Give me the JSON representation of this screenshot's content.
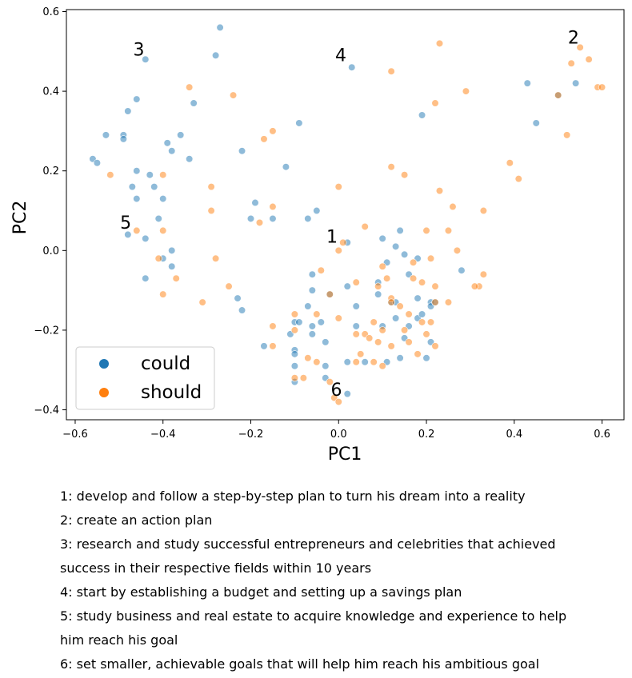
{
  "chart_data": {
    "type": "scatter",
    "xlabel": "PC1",
    "ylabel": "PC2",
    "xlim": [
      -0.62,
      0.65
    ],
    "ylim": [
      -0.425,
      0.605
    ],
    "xticks": [
      -0.6,
      -0.4,
      -0.2,
      0.0,
      0.2,
      0.4,
      0.6
    ],
    "yticks": [
      -0.4,
      -0.2,
      0.0,
      0.2,
      0.4,
      0.6
    ],
    "xtick_labels": [
      "−0.6",
      "−0.4",
      "−0.2",
      "0.0",
      "0.2",
      "0.4",
      "0.6"
    ],
    "ytick_labels": [
      "−0.4",
      "−0.2",
      "0.0",
      "0.2",
      "0.4",
      "0.6"
    ],
    "grid": false,
    "legend_position": "bottom-left",
    "series": [
      {
        "name": "could",
        "color": "#1f77b4",
        "points": [
          [
            -0.27,
            0.56
          ],
          [
            -0.44,
            0.48
          ],
          [
            -0.28,
            0.49
          ],
          [
            -0.46,
            0.38
          ],
          [
            -0.33,
            0.37
          ],
          [
            -0.48,
            0.35
          ],
          [
            -0.53,
            0.29
          ],
          [
            -0.49,
            0.29
          ],
          [
            -0.49,
            0.28
          ],
          [
            -0.36,
            0.29
          ],
          [
            -0.39,
            0.27
          ],
          [
            -0.38,
            0.25
          ],
          [
            -0.22,
            0.25
          ],
          [
            -0.56,
            0.23
          ],
          [
            -0.55,
            0.22
          ],
          [
            -0.34,
            0.23
          ],
          [
            -0.46,
            0.2
          ],
          [
            -0.43,
            0.19
          ],
          [
            -0.12,
            0.21
          ],
          [
            -0.09,
            0.32
          ],
          [
            -0.47,
            0.16
          ],
          [
            -0.42,
            0.16
          ],
          [
            -0.46,
            0.13
          ],
          [
            -0.4,
            0.13
          ],
          [
            -0.19,
            0.12
          ],
          [
            -0.2,
            0.08
          ],
          [
            -0.15,
            0.08
          ],
          [
            -0.07,
            0.08
          ],
          [
            -0.05,
            0.1
          ],
          [
            -0.41,
            0.08
          ],
          [
            -0.48,
            0.04
          ],
          [
            -0.44,
            0.03
          ],
          [
            -0.38,
            0.0
          ],
          [
            -0.4,
            -0.02
          ],
          [
            -0.38,
            -0.04
          ],
          [
            -0.44,
            -0.07
          ],
          [
            -0.23,
            -0.12
          ],
          [
            -0.22,
            -0.15
          ],
          [
            0.03,
            0.46
          ],
          [
            0.02,
            0.02
          ],
          [
            0.1,
            0.03
          ],
          [
            0.14,
            0.05
          ],
          [
            0.13,
            0.01
          ],
          [
            0.15,
            -0.01
          ],
          [
            0.11,
            -0.03
          ],
          [
            0.18,
            -0.02
          ],
          [
            0.16,
            -0.06
          ],
          [
            0.28,
            -0.05
          ],
          [
            0.02,
            -0.09
          ],
          [
            0.04,
            -0.14
          ],
          [
            0.09,
            -0.08
          ],
          [
            0.09,
            -0.11
          ],
          [
            0.12,
            -0.13
          ],
          [
            0.13,
            -0.13
          ],
          [
            0.18,
            -0.12
          ],
          [
            0.21,
            -0.13
          ],
          [
            0.21,
            -0.14
          ],
          [
            0.22,
            -0.13
          ],
          [
            0.13,
            -0.17
          ],
          [
            0.18,
            -0.17
          ],
          [
            0.19,
            -0.16
          ],
          [
            0.16,
            -0.19
          ],
          [
            0.1,
            -0.19
          ],
          [
            0.04,
            -0.19
          ],
          [
            0.15,
            -0.22
          ],
          [
            0.21,
            -0.23
          ],
          [
            0.2,
            -0.27
          ],
          [
            0.14,
            -0.27
          ],
          [
            0.11,
            -0.28
          ],
          [
            0.06,
            -0.28
          ],
          [
            0.02,
            -0.28
          ],
          [
            -0.06,
            -0.06
          ],
          [
            -0.07,
            -0.14
          ],
          [
            -0.06,
            -0.19
          ],
          [
            -0.04,
            -0.18
          ],
          [
            -0.06,
            -0.21
          ],
          [
            -0.03,
            -0.23
          ],
          [
            -0.02,
            -0.11
          ],
          [
            -0.06,
            -0.1
          ],
          [
            -0.1,
            -0.18
          ],
          [
            -0.09,
            -0.18
          ],
          [
            -0.11,
            -0.21
          ],
          [
            -0.1,
            -0.25
          ],
          [
            -0.1,
            -0.26
          ],
          [
            -0.1,
            -0.29
          ],
          [
            -0.1,
            -0.33
          ],
          [
            -0.03,
            -0.29
          ],
          [
            -0.03,
            -0.32
          ],
          [
            -0.17,
            -0.24
          ],
          [
            0.02,
            -0.36
          ],
          [
            0.19,
            0.34
          ],
          [
            0.43,
            0.42
          ],
          [
            0.45,
            0.32
          ],
          [
            0.54,
            0.42
          ],
          [
            0.5,
            0.39
          ]
        ]
      },
      {
        "name": "should",
        "color": "#ff7f0e",
        "points": [
          [
            0.23,
            0.52
          ],
          [
            0.12,
            0.45
          ],
          [
            0.29,
            0.4
          ],
          [
            0.22,
            0.37
          ],
          [
            -0.34,
            0.41
          ],
          [
            -0.24,
            0.39
          ],
          [
            -0.15,
            0.3
          ],
          [
            -0.17,
            0.28
          ],
          [
            0.52,
            0.29
          ],
          [
            0.39,
            0.22
          ],
          [
            0.41,
            0.18
          ],
          [
            0.12,
            0.21
          ],
          [
            0.15,
            0.19
          ],
          [
            0.23,
            0.15
          ],
          [
            -0.52,
            0.19
          ],
          [
            -0.4,
            0.19
          ],
          [
            -0.29,
            0.16
          ],
          [
            0.0,
            0.16
          ],
          [
            -0.29,
            0.1
          ],
          [
            -0.15,
            0.11
          ],
          [
            -0.18,
            0.07
          ],
          [
            0.26,
            0.11
          ],
          [
            0.33,
            0.1
          ],
          [
            0.06,
            0.06
          ],
          [
            0.2,
            0.05
          ],
          [
            0.25,
            0.05
          ],
          [
            0.27,
            0.0
          ],
          [
            -0.46,
            0.05
          ],
          [
            -0.4,
            0.05
          ],
          [
            -0.41,
            -0.02
          ],
          [
            -0.37,
            -0.07
          ],
          [
            -0.4,
            -0.11
          ],
          [
            -0.28,
            -0.02
          ],
          [
            -0.25,
            -0.09
          ],
          [
            -0.31,
            -0.13
          ],
          [
            0.01,
            0.02
          ],
          [
            0.0,
            0.0
          ],
          [
            -0.04,
            -0.05
          ],
          [
            0.1,
            -0.04
          ],
          [
            0.11,
            -0.07
          ],
          [
            0.17,
            -0.07
          ],
          [
            0.21,
            -0.02
          ],
          [
            0.17,
            -0.03
          ],
          [
            0.19,
            -0.08
          ],
          [
            0.22,
            -0.09
          ],
          [
            0.33,
            -0.06
          ],
          [
            0.32,
            -0.09
          ],
          [
            0.31,
            -0.09
          ],
          [
            0.25,
            -0.13
          ],
          [
            0.04,
            -0.08
          ],
          [
            0.09,
            -0.09
          ],
          [
            0.12,
            -0.12
          ],
          [
            0.12,
            -0.13
          ],
          [
            0.14,
            -0.14
          ],
          [
            0.16,
            -0.16
          ],
          [
            0.15,
            -0.2
          ],
          [
            0.19,
            -0.18
          ],
          [
            0.21,
            -0.18
          ],
          [
            0.22,
            -0.13
          ],
          [
            0.2,
            -0.21
          ],
          [
            0.1,
            -0.2
          ],
          [
            0.08,
            -0.18
          ],
          [
            0.06,
            -0.21
          ],
          [
            0.04,
            -0.21
          ],
          [
            0.07,
            -0.22
          ],
          [
            0.09,
            -0.23
          ],
          [
            0.12,
            -0.24
          ],
          [
            0.16,
            -0.23
          ],
          [
            0.22,
            -0.24
          ],
          [
            0.18,
            -0.26
          ],
          [
            0.1,
            -0.29
          ],
          [
            0.08,
            -0.28
          ],
          [
            0.05,
            -0.26
          ],
          [
            0.04,
            -0.28
          ],
          [
            -0.02,
            -0.11
          ],
          [
            0.0,
            -0.17
          ],
          [
            -0.05,
            -0.16
          ],
          [
            -0.15,
            -0.19
          ],
          [
            -0.15,
            -0.24
          ],
          [
            -0.1,
            -0.16
          ],
          [
            -0.1,
            -0.2
          ],
          [
            -0.07,
            -0.27
          ],
          [
            -0.05,
            -0.28
          ],
          [
            -0.08,
            -0.32
          ],
          [
            -0.1,
            -0.32
          ],
          [
            -0.02,
            -0.33
          ],
          [
            -0.01,
            -0.37
          ],
          [
            0.0,
            -0.38
          ],
          [
            0.55,
            0.51
          ],
          [
            0.53,
            0.47
          ],
          [
            0.57,
            0.48
          ],
          [
            0.5,
            0.39
          ],
          [
            0.59,
            0.41
          ],
          [
            0.6,
            0.41
          ]
        ]
      }
    ],
    "annotations": [
      {
        "text": "1",
        "x": -0.015,
        "y": 0.02
      },
      {
        "text": "2",
        "x": 0.535,
        "y": 0.52
      },
      {
        "text": "3",
        "x": -0.455,
        "y": 0.49
      },
      {
        "text": "4",
        "x": 0.005,
        "y": 0.475
      },
      {
        "text": "5",
        "x": -0.485,
        "y": 0.055
      },
      {
        "text": "6",
        "x": -0.005,
        "y": -0.365
      }
    ]
  },
  "notes": {
    "line1": "1: develop and follow a step-by-step plan to turn his dream into a reality",
    "line2": "2: create an action plan",
    "line3": "3: research and study successful entrepreneurs and celebrities that achieved",
    "line4": "success in their respective fields within 10 years",
    "line5": "4: start by establishing a budget and setting up a savings plan",
    "line6": "5: study business and real estate to acquire knowledge and experience to help",
    "line7": "him reach his goal",
    "line8": "6: set smaller, achievable goals that will help him reach his ambitious goal"
  }
}
